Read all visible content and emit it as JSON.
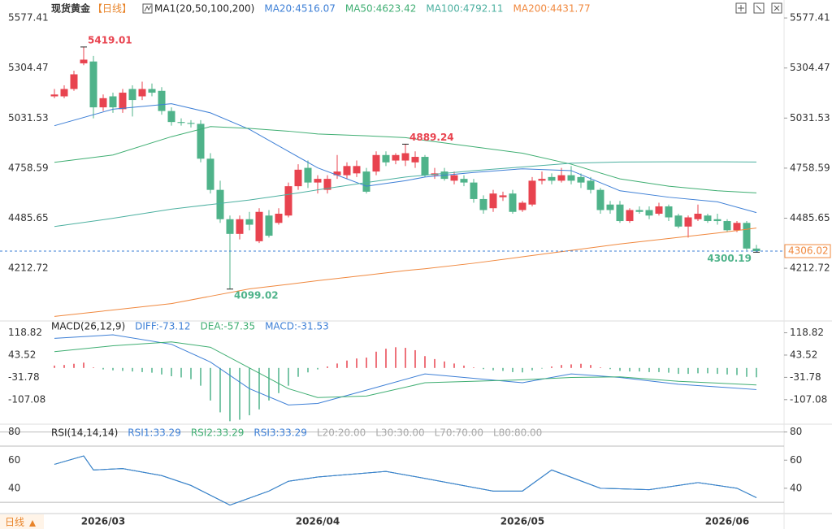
{
  "header": {
    "title": "现货黄金",
    "period": "【日线】",
    "bottom_tab": "日线"
  },
  "chart_data": [
    {
      "type": "candlestick",
      "title": "MA1(20,50,100,200)",
      "categories": [
        null,
        null,
        null,
        null,
        null,
        "2026/03",
        null,
        null,
        null,
        null,
        null,
        null,
        null,
        null,
        null,
        null,
        null,
        null,
        null,
        null,
        null,
        null,
        null,
        null,
        null,
        null,
        null,
        "2026/04",
        null,
        null,
        null,
        null,
        null,
        null,
        null,
        null,
        null,
        null,
        null,
        null,
        null,
        null,
        null,
        null,
        null,
        null,
        null,
        null,
        "2026/05",
        null,
        null,
        null,
        null,
        null,
        null,
        null,
        null,
        null,
        null,
        null,
        null,
        null,
        null,
        null,
        null,
        null,
        null,
        null,
        null,
        "2026/06",
        null,
        null,
        null
      ],
      "open": [
        5150,
        5150,
        5190,
        5330,
        5340,
        5090,
        5150,
        5080,
        5190,
        5150,
        5190,
        5180,
        5070,
        5010,
        5005,
        5000,
        4810,
        4640,
        4480,
        4400,
        4480,
        4360,
        4500,
        4460,
        4500,
        4660,
        4760,
        4680,
        4640,
        4720,
        4720,
        4730,
        4740,
        4740,
        4830,
        4800,
        4800,
        4790,
        4820,
        4720,
        4740,
        4690,
        4700,
        4680,
        4590,
        4540,
        4600,
        4620,
        4530,
        4560,
        4690,
        4710,
        4690,
        4720,
        4710,
        4690,
        4640,
        4560,
        4560,
        4470,
        4530,
        4530,
        4510,
        4550,
        4500,
        4440,
        4480,
        4500,
        4480,
        4470,
        4420,
        4460,
        4320
      ],
      "close": [
        5160,
        5190,
        5270,
        5350,
        5090,
        5140,
        5090,
        5170,
        5130,
        5190,
        5170,
        5070,
        5010,
        5005,
        5000,
        4810,
        4640,
        4480,
        4400,
        4480,
        4450,
        4520,
        4390,
        4510,
        4660,
        4750,
        4680,
        4700,
        4700,
        4740,
        4770,
        4770,
        4630,
        4830,
        4790,
        4830,
        4840,
        4820,
        4720,
        4730,
        4700,
        4720,
        4680,
        4590,
        4530,
        4620,
        4610,
        4520,
        4570,
        4690,
        4700,
        4690,
        4720,
        4690,
        4680,
        4640,
        4530,
        4530,
        4470,
        4530,
        4520,
        4500,
        4550,
        4490,
        4440,
        4490,
        4510,
        4470,
        4470,
        4420,
        4460,
        4320,
        4306.02
      ],
      "high": [
        5190,
        5210,
        5290,
        5419.01,
        5370,
        5160,
        5170,
        5190,
        5210,
        5230,
        5220,
        5200,
        5090,
        5030,
        5020,
        5020,
        4840,
        4690,
        4500,
        4500,
        4520,
        4540,
        4530,
        4540,
        4680,
        4780,
        4800,
        4720,
        4720,
        4830,
        4790,
        4800,
        4760,
        4850,
        4850,
        4840,
        4889.24,
        4850,
        4830,
        4760,
        4760,
        4740,
        4720,
        4700,
        4610,
        4640,
        4630,
        4640,
        4580,
        4710,
        4740,
        4730,
        4760,
        4770,
        4730,
        4710,
        4650,
        4580,
        4580,
        4540,
        4550,
        4550,
        4570,
        4560,
        4510,
        4500,
        4560,
        4510,
        4510,
        4480,
        4470,
        4470,
        4340
      ],
      "low": [
        5140,
        5140,
        5180,
        5320,
        5030,
        5070,
        5060,
        5060,
        5040,
        5130,
        5150,
        5050,
        4990,
        4990,
        4980,
        4790,
        4620,
        4460,
        4099.02,
        4370,
        4420,
        4350,
        4380,
        4450,
        4490,
        4640,
        4650,
        4620,
        4620,
        4700,
        4700,
        4710,
        4620,
        4720,
        4770,
        4780,
        4770,
        4760,
        4710,
        4700,
        4690,
        4670,
        4660,
        4570,
        4510,
        4520,
        4580,
        4510,
        4520,
        4550,
        4670,
        4670,
        4680,
        4670,
        4650,
        4620,
        4510,
        4510,
        4460,
        4460,
        4510,
        4480,
        4500,
        4470,
        4430,
        4380,
        4470,
        4460,
        4450,
        4410,
        4410,
        4310,
        4300.19
      ],
      "up_color": "#e8434f",
      "down_color": "#4fb38a",
      "series": [
        {
          "name": "MA20:4516.07",
          "color": "#3d7fd6",
          "x": [
            0,
            6,
            12,
            16,
            20,
            24,
            27,
            32,
            36,
            38,
            43,
            48,
            53,
            58,
            63,
            68,
            72
          ],
          "values": [
            4990,
            5080,
            5110,
            5060,
            4970,
            4850,
            4760,
            4660,
            4690,
            4710,
            4735,
            4755,
            4745,
            4635,
            4600,
            4575,
            4516.07
          ]
        },
        {
          "name": "MA50:4623.42",
          "color": "#3fae72",
          "x": [
            0,
            6,
            12,
            16,
            20,
            24,
            27,
            32,
            36,
            38,
            43,
            48,
            53,
            58,
            63,
            68,
            72
          ],
          "values": [
            4790,
            4830,
            4930,
            4985,
            4975,
            4960,
            4945,
            4935,
            4925,
            4910,
            4875,
            4840,
            4780,
            4700,
            4660,
            4635,
            4623.42
          ]
        },
        {
          "name": "MA100:4792.11",
          "color": "#4cb0a0",
          "x": [
            0,
            6,
            12,
            16,
            20,
            24,
            27,
            32,
            36,
            38,
            43,
            48,
            53,
            58,
            63,
            68,
            72
          ],
          "values": [
            4440,
            4485,
            4535,
            4560,
            4585,
            4615,
            4640,
            4680,
            4710,
            4720,
            4745,
            4765,
            4785,
            4792,
            4793,
            4793,
            4792.11
          ]
        },
        {
          "name": "MA200:4431.77",
          "color": "#f0883e",
          "x": [
            0,
            6,
            12,
            16,
            20,
            24,
            27,
            32,
            36,
            38,
            43,
            48,
            53,
            58,
            63,
            68,
            72
          ],
          "values": [
            3950,
            3985,
            4020,
            4060,
            4100,
            4125,
            4145,
            4175,
            4200,
            4210,
            4240,
            4275,
            4310,
            4345,
            4375,
            4405,
            4431.77
          ]
        }
      ],
      "annotations": [
        {
          "x": 3,
          "value": 5419.01
        },
        {
          "x": 18,
          "value": 4099.02
        },
        {
          "x": 36,
          "value": 4889.24
        },
        {
          "x": 72,
          "value": 4300.19
        }
      ],
      "last_price": 4306.02,
      "last_price_color": "#f0883e",
      "ylim": [
        3934,
        5631
      ],
      "yticks": [
        5577.41,
        5304.47,
        5031.53,
        4758.59,
        4485.65,
        4212.72
      ],
      "grid": false
    },
    {
      "type": "macd",
      "title": "MACD(26,12,9)",
      "name": "MACD:-31.53",
      "color": "#3d7fd6",
      "values": [
        8,
        10,
        14,
        18,
        2,
        -5,
        -8,
        -10,
        -12,
        -14,
        -16,
        -22,
        -28,
        -32,
        -38,
        -60,
        -110,
        -150,
        -180,
        -175,
        -160,
        -140,
        -110,
        -85,
        -60,
        -30,
        -15,
        -5,
        5,
        15,
        25,
        32,
        35,
        55,
        65,
        70,
        68,
        60,
        40,
        30,
        22,
        15,
        8,
        2,
        -4,
        -8,
        -10,
        -14,
        -15,
        -8,
        -2,
        5,
        10,
        12,
        14,
        10,
        2,
        -4,
        -10,
        -12,
        -12,
        -14,
        -14,
        -16,
        -20,
        -20,
        -18,
        -18,
        -20,
        -22,
        -24,
        -30,
        -31.53
      ],
      "series": [
        {
          "name": "DIFF:-73.12",
          "color": "#3d7fd6",
          "x": [
            0,
            6,
            12,
            16,
            20,
            24,
            27,
            32,
            38,
            48,
            53,
            58,
            64,
            72
          ],
          "values": [
            100,
            112,
            80,
            20,
            -70,
            -125,
            -120,
            -75,
            -20,
            -50,
            -20,
            -32,
            -55,
            -73.12
          ]
        },
        {
          "name": "DEA:-57.35",
          "color": "#3fae72",
          "x": [
            0,
            6,
            12,
            16,
            20,
            24,
            27,
            32,
            38,
            48,
            53,
            58,
            64,
            72
          ],
          "values": [
            55,
            75,
            88,
            70,
            0,
            -70,
            -100,
            -95,
            -50,
            -40,
            -32,
            -30,
            -45,
            -57.35
          ]
        }
      ],
      "ylim": [
        -190,
        156
      ],
      "yticks": [
        118.82,
        43.52,
        -31.78,
        -107.08
      ]
    },
    {
      "type": "line",
      "title": "RSI(14,14,14)",
      "series": [
        {
          "name": "RSI1:33.29",
          "color": "#3d7fd6",
          "x": [
            0,
            3,
            4,
            7,
            11,
            14,
            18,
            22,
            24,
            27,
            34,
            38,
            45,
            48,
            51,
            56,
            61,
            66,
            70,
            72
          ],
          "values": [
            57,
            63,
            53,
            54,
            49,
            42,
            28,
            38,
            45,
            48,
            52,
            47,
            38,
            38,
            53,
            40,
            39,
            44,
            40,
            33.29
          ]
        },
        {
          "name": "RSI2:33.29",
          "color": "#3fae72",
          "x": [
            0,
            3,
            4,
            7,
            11,
            14,
            18,
            22,
            24,
            27,
            34,
            38,
            45,
            48,
            51,
            56,
            61,
            66,
            70,
            72
          ],
          "values": [
            57,
            63,
            53,
            54,
            49,
            42,
            28,
            38,
            45,
            48,
            52,
            47,
            38,
            38,
            53,
            40,
            39,
            44,
            40,
            33.29
          ]
        },
        {
          "name": "RSI3:33.29",
          "color": "#3d7fd6",
          "x": [
            0,
            3,
            4,
            7,
            11,
            14,
            18,
            22,
            24,
            27,
            34,
            38,
            45,
            48,
            51,
            56,
            61,
            66,
            70,
            72
          ],
          "values": [
            57,
            63,
            53,
            54,
            49,
            42,
            28,
            38,
            45,
            48,
            52,
            47,
            38,
            38,
            53,
            40,
            39,
            44,
            40,
            33.29
          ]
        }
      ],
      "levels": [
        {
          "value": 20,
          "label": "L20:20.00"
        },
        {
          "value": 30,
          "label": "L30:30.00"
        },
        {
          "value": 70,
          "label": "L70:70.00"
        },
        {
          "value": 80,
          "label": "L80:80.00"
        }
      ],
      "ylim": [
        22,
        85
      ],
      "yticks": [
        80,
        60,
        40
      ]
    }
  ]
}
